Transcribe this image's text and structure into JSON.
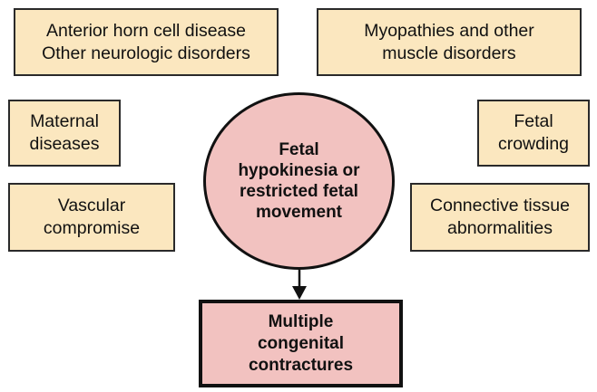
{
  "boxes": {
    "anterior_horn": [
      "Anterior horn cell disease",
      "Other neurologic disorders"
    ],
    "myopathies": [
      "Myopathies and other",
      "muscle disorders"
    ],
    "maternal": [
      "Maternal",
      "diseases"
    ],
    "fetal_crowding": [
      "Fetal",
      "crowding"
    ],
    "vascular": [
      "Vascular",
      "compromise"
    ],
    "connective": [
      "Connective tissue",
      "abnormalities"
    ]
  },
  "center": [
    "Fetal",
    "hypokinesia or",
    "restricted fetal",
    "movement"
  ],
  "result": [
    "Multiple",
    "congenital",
    "contractures"
  ],
  "colors": {
    "cause_fill": "#fbe7bf",
    "center_fill": "#f2c2c0",
    "result_fill": "#f2c2c0",
    "border": "#111111"
  }
}
